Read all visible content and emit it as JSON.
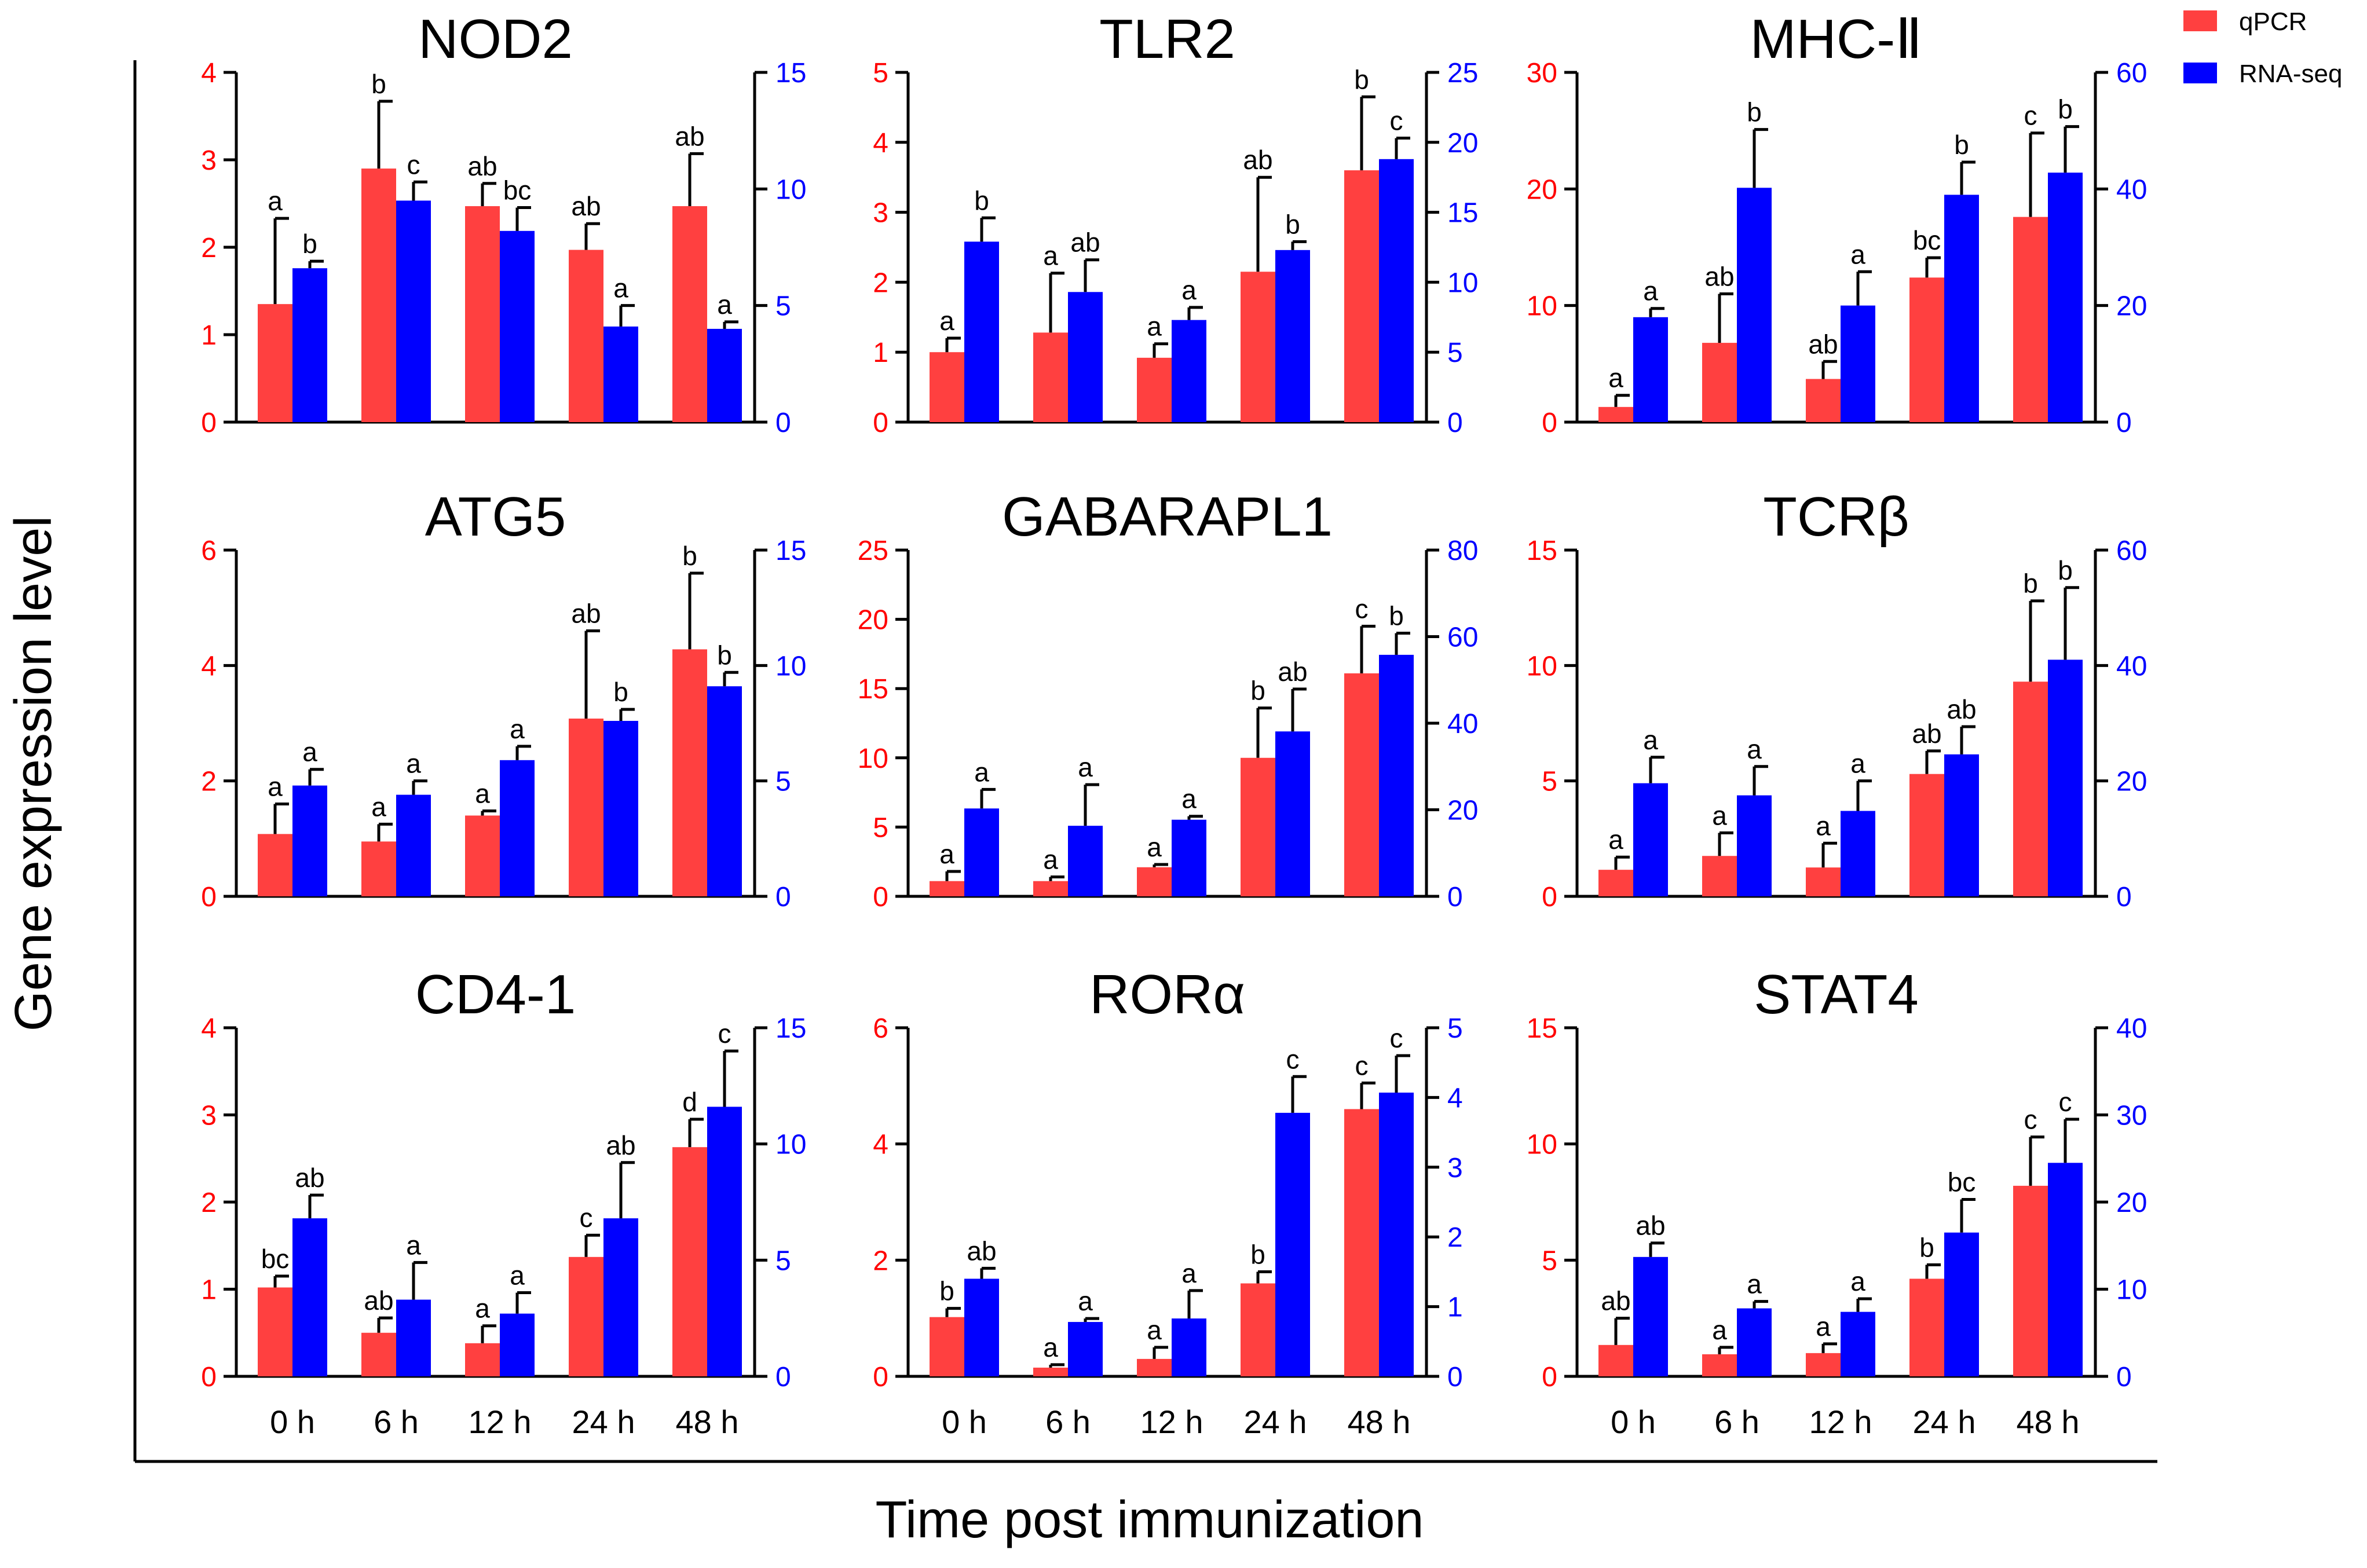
{
  "figure": {
    "y_axis_title": "Gene expression level",
    "x_axis_title": "Time post immunization",
    "legend": [
      {
        "label": "qPCR",
        "color": "#ff4040"
      },
      {
        "label": "RNA-seq",
        "color": "#0000ff"
      }
    ],
    "colors": {
      "qpcr": "#ff4040",
      "rnaseq": "#0000ff",
      "left_axis": "#ff0000",
      "right_axis": "#0000ff"
    }
  },
  "chart_data": [
    {
      "type": "bar",
      "title": "NOD2",
      "categories": [
        "0 h",
        "6 h",
        "12 h",
        "24 h",
        "48 h"
      ],
      "left_axis": {
        "ylim": [
          0,
          4
        ],
        "ticks": [
          0,
          1,
          2,
          3,
          4
        ]
      },
      "right_axis": {
        "ylim": [
          0,
          15
        ],
        "ticks": [
          0,
          5,
          10,
          15
        ]
      },
      "series": [
        {
          "name": "qPCR",
          "axis": "left",
          "values": [
            1.35,
            2.9,
            2.47,
            1.97,
            2.47
          ],
          "errors": [
            0.98,
            0.77,
            0.26,
            0.3,
            0.6
          ],
          "labels": [
            "a",
            "b",
            "ab",
            "ab",
            "ab"
          ]
        },
        {
          "name": "RNA-seq",
          "axis": "right",
          "values": [
            6.6,
            9.5,
            8.2,
            4.1,
            4.0
          ],
          "errors": [
            0.3,
            0.8,
            1.0,
            0.9,
            0.3
          ],
          "labels": [
            "b",
            "c",
            "bc",
            "a",
            "a"
          ]
        }
      ]
    },
    {
      "type": "bar",
      "title": "TLR2",
      "categories": [
        "0 h",
        "6 h",
        "12 h",
        "24 h",
        "48 h"
      ],
      "left_axis": {
        "ylim": [
          0,
          5
        ],
        "ticks": [
          0,
          1,
          2,
          3,
          4,
          5
        ]
      },
      "right_axis": {
        "ylim": [
          0,
          25
        ],
        "ticks": [
          0,
          5,
          10,
          15,
          20,
          25
        ]
      },
      "series": [
        {
          "name": "qPCR",
          "axis": "left",
          "values": [
            1.0,
            1.28,
            0.92,
            2.15,
            3.6
          ],
          "errors": [
            0.2,
            0.85,
            0.2,
            1.35,
            1.05
          ],
          "labels": [
            "a",
            "a",
            "a",
            "ab",
            "b"
          ]
        },
        {
          "name": "RNA-seq",
          "axis": "right",
          "values": [
            12.9,
            9.3,
            7.3,
            12.3,
            18.8
          ],
          "errors": [
            1.7,
            2.3,
            0.9,
            0.6,
            1.5
          ],
          "labels": [
            "b",
            "ab",
            "a",
            "b",
            "c"
          ]
        }
      ]
    },
    {
      "type": "bar",
      "title": "MHC-Ⅱ",
      "categories": [
        "0 h",
        "6 h",
        "12 h",
        "24 h",
        "48 h"
      ],
      "left_axis": {
        "ylim": [
          0,
          30
        ],
        "ticks": [
          0,
          10,
          20,
          30
        ]
      },
      "right_axis": {
        "ylim": [
          0,
          60
        ],
        "ticks": [
          0,
          20,
          40,
          60
        ]
      },
      "series": [
        {
          "name": "qPCR",
          "axis": "left",
          "values": [
            1.3,
            6.8,
            3.7,
            12.4,
            17.6
          ],
          "errors": [
            1.0,
            4.2,
            1.5,
            1.7,
            7.2
          ],
          "labels": [
            "a",
            "ab",
            "ab",
            "bc",
            "c"
          ]
        },
        {
          "name": "RNA-seq",
          "axis": "right",
          "values": [
            18.0,
            40.2,
            20.0,
            39.0,
            42.8
          ],
          "errors": [
            1.5,
            10.0,
            5.8,
            5.6,
            7.9
          ],
          "labels": [
            "a",
            "b",
            "a",
            "b",
            "b"
          ]
        }
      ]
    },
    {
      "type": "bar",
      "title": "ATG5",
      "categories": [
        "0 h",
        "6 h",
        "12 h",
        "24 h",
        "48 h"
      ],
      "left_axis": {
        "ylim": [
          0,
          6
        ],
        "ticks": [
          0,
          2,
          4,
          6
        ]
      },
      "right_axis": {
        "ylim": [
          0,
          15
        ],
        "ticks": [
          0,
          5,
          10,
          15
        ]
      },
      "series": [
        {
          "name": "qPCR",
          "axis": "left",
          "values": [
            1.08,
            0.95,
            1.4,
            3.08,
            4.28
          ],
          "errors": [
            0.52,
            0.3,
            0.08,
            1.52,
            1.32
          ],
          "labels": [
            "a",
            "a",
            "a",
            "ab",
            "b"
          ]
        },
        {
          "name": "RNA-seq",
          "axis": "right",
          "values": [
            4.8,
            4.4,
            5.9,
            7.6,
            9.1
          ],
          "errors": [
            0.7,
            0.6,
            0.6,
            0.5,
            0.6
          ],
          "labels": [
            "a",
            "a",
            "a",
            "b",
            "b"
          ]
        }
      ]
    },
    {
      "type": "bar",
      "title": "GABARAPL1",
      "categories": [
        "0 h",
        "6 h",
        "12 h",
        "24 h",
        "48 h"
      ],
      "left_axis": {
        "ylim": [
          0,
          25
        ],
        "ticks": [
          0,
          5,
          10,
          15,
          20,
          25
        ]
      },
      "right_axis": {
        "ylim": [
          0,
          80
        ],
        "ticks": [
          0,
          20,
          40,
          60,
          80
        ]
      },
      "series": [
        {
          "name": "qPCR",
          "axis": "left",
          "values": [
            1.1,
            1.1,
            2.1,
            10.0,
            16.1
          ],
          "errors": [
            0.7,
            0.3,
            0.2,
            3.6,
            3.4
          ],
          "labels": [
            "a",
            "a",
            "a",
            "b",
            "c"
          ]
        },
        {
          "name": "RNA-seq",
          "axis": "right",
          "values": [
            20.3,
            16.3,
            17.7,
            38.1,
            55.8
          ],
          "errors": [
            4.4,
            9.5,
            0.8,
            9.8,
            5.0
          ],
          "labels": [
            "a",
            "a",
            "a",
            "ab",
            "b"
          ]
        }
      ]
    },
    {
      "type": "bar",
      "title": "TCRβ",
      "categories": [
        "0 h",
        "6 h",
        "12 h",
        "24 h",
        "48 h"
      ],
      "left_axis": {
        "ylim": [
          0,
          15
        ],
        "ticks": [
          0,
          5,
          10,
          15
        ]
      },
      "right_axis": {
        "ylim": [
          0,
          60
        ],
        "ticks": [
          0,
          20,
          40,
          60
        ]
      },
      "series": [
        {
          "name": "qPCR",
          "axis": "left",
          "values": [
            1.15,
            1.75,
            1.25,
            5.3,
            9.3
          ],
          "errors": [
            0.55,
            1.0,
            1.05,
            1.0,
            3.5
          ],
          "labels": [
            "a",
            "a",
            "a",
            "ab",
            "b"
          ]
        },
        {
          "name": "RNA-seq",
          "axis": "right",
          "values": [
            19.6,
            17.5,
            14.8,
            24.6,
            41.0
          ],
          "errors": [
            4.5,
            5.0,
            5.2,
            4.8,
            12.5
          ],
          "labels": [
            "a",
            "a",
            "a",
            "ab",
            "b"
          ]
        }
      ]
    },
    {
      "type": "bar",
      "title": "CD4-1",
      "categories": [
        "0 h",
        "6 h",
        "12 h",
        "24 h",
        "48 h"
      ],
      "left_axis": {
        "ylim": [
          0,
          4
        ],
        "ticks": [
          0,
          1,
          2,
          3,
          4
        ]
      },
      "right_axis": {
        "ylim": [
          0,
          15
        ],
        "ticks": [
          0,
          5,
          10,
          15
        ]
      },
      "series": [
        {
          "name": "qPCR",
          "axis": "left",
          "values": [
            1.02,
            0.5,
            0.38,
            1.37,
            2.63
          ],
          "errors": [
            0.13,
            0.17,
            0.2,
            0.25,
            0.32
          ],
          "labels": [
            "bc",
            "ab",
            "a",
            "c",
            "d"
          ]
        },
        {
          "name": "RNA-seq",
          "axis": "right",
          "values": [
            6.8,
            3.3,
            2.7,
            6.8,
            11.6
          ],
          "errors": [
            1.0,
            1.6,
            0.9,
            2.4,
            2.4
          ],
          "labels": [
            "ab",
            "a",
            "a",
            "ab",
            "c"
          ]
        }
      ]
    },
    {
      "type": "bar",
      "title": "RORα",
      "categories": [
        "0 h",
        "6 h",
        "12 h",
        "24 h",
        "48 h"
      ],
      "left_axis": {
        "ylim": [
          0,
          6
        ],
        "ticks": [
          0,
          2,
          4,
          6
        ]
      },
      "right_axis": {
        "ylim": [
          0,
          5
        ],
        "ticks": [
          0,
          1,
          2,
          3,
          4,
          5
        ]
      },
      "series": [
        {
          "name": "qPCR",
          "axis": "left",
          "values": [
            1.02,
            0.15,
            0.3,
            1.6,
            4.6
          ],
          "errors": [
            0.15,
            0.05,
            0.2,
            0.2,
            0.45
          ],
          "labels": [
            "b",
            "a",
            "a",
            "b",
            "c"
          ]
        },
        {
          "name": "RNA-seq",
          "axis": "right",
          "values": [
            1.4,
            0.78,
            0.83,
            3.78,
            4.07
          ],
          "errors": [
            0.15,
            0.05,
            0.4,
            0.52,
            0.53
          ],
          "labels": [
            "ab",
            "a",
            "a",
            "c",
            "c"
          ]
        }
      ]
    },
    {
      "type": "bar",
      "title": "STAT4",
      "categories": [
        "0 h",
        "6 h",
        "12 h",
        "24 h",
        "48 h"
      ],
      "left_axis": {
        "ylim": [
          0,
          15
        ],
        "ticks": [
          0,
          5,
          10,
          15
        ]
      },
      "right_axis": {
        "ylim": [
          0,
          40
        ],
        "ticks": [
          0,
          10,
          20,
          30,
          40
        ]
      },
      "series": [
        {
          "name": "qPCR",
          "axis": "left",
          "values": [
            1.35,
            0.95,
            1.0,
            4.2,
            8.2
          ],
          "errors": [
            1.15,
            0.3,
            0.4,
            0.6,
            2.1
          ],
          "labels": [
            "ab",
            "a",
            "a",
            "b",
            "c"
          ]
        },
        {
          "name": "RNA-seq",
          "axis": "right",
          "values": [
            13.7,
            7.8,
            7.4,
            16.5,
            24.5
          ],
          "errors": [
            1.6,
            0.8,
            1.5,
            3.8,
            5.0
          ],
          "labels": [
            "ab",
            "a",
            "a",
            "bc",
            "c"
          ]
        }
      ]
    }
  ]
}
